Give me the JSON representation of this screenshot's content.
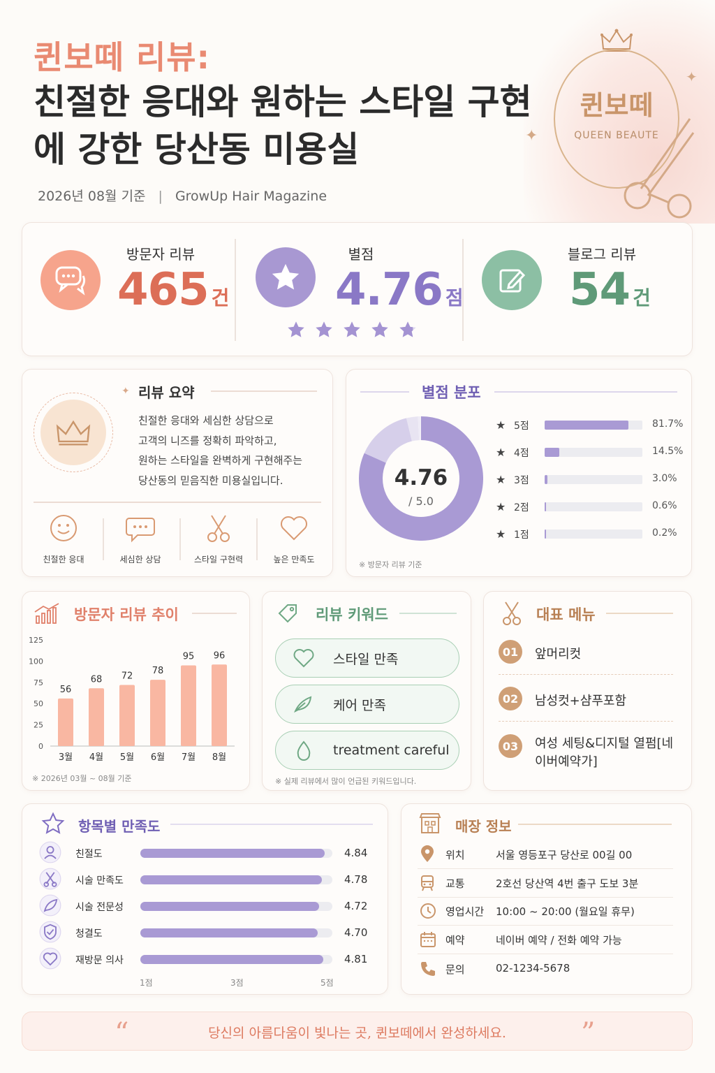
{
  "header": {
    "kicker": "퀸보떼 리뷰:",
    "title": "친절한 응대와 원하는 스타일 구현에 강한 당산동 미용실",
    "date": "2026년 08월 기준",
    "divider": "|",
    "publisher": "GrowUp Hair Magazine",
    "logo_kr": "퀸보떼",
    "logo_en": "QUEEN BEAUTE"
  },
  "stats": {
    "visitor_label": "방문자 리뷰",
    "visitor_value": "465",
    "visitor_unit": "건",
    "rating_label": "별점",
    "rating_value": "4.76",
    "rating_unit": "점",
    "rating_stars": 4.76,
    "blog_label": "블로그 리뷰",
    "blog_value": "54",
    "blog_unit": "건"
  },
  "summary": {
    "title": "리뷰 요약",
    "lines": [
      "친절한 응대와 세심한 상담으로",
      "고객의 니즈를 정확히 파악하고,",
      "원하는 스타일을 완벽하게 구현해주는",
      "당산동의 믿음직한 미용실입니다."
    ],
    "features": [
      "친절한 응대",
      "세심한 상담",
      "스타일 구현력",
      "높은 만족도"
    ]
  },
  "rating_dist": {
    "title": "별점 분포",
    "center_value": "4.76",
    "center_sub": "/ 5.0",
    "rows": [
      {
        "label": "5점",
        "pct": 81.7,
        "text": "81.7%"
      },
      {
        "label": "4점",
        "pct": 14.5,
        "text": "14.5%"
      },
      {
        "label": "3점",
        "pct": 3.0,
        "text": "3.0%"
      },
      {
        "label": "2점",
        "pct": 0.6,
        "text": "0.6%"
      },
      {
        "label": "1점",
        "pct": 0.2,
        "text": "0.2%"
      }
    ],
    "note": "※ 방문자 리뷰 기준"
  },
  "trend": {
    "title": "방문자 리뷰 추이",
    "note": "※ 2026년 03월 ~ 08월 기준"
  },
  "chart_data": {
    "type": "bar",
    "categories": [
      "3월",
      "4월",
      "5월",
      "6월",
      "7월",
      "8월"
    ],
    "values": [
      56,
      68,
      72,
      78,
      95,
      96
    ],
    "yticks": [
      0,
      25,
      50,
      75,
      100,
      125
    ],
    "ylim": [
      0,
      125
    ],
    "title": "방문자 리뷰 추이",
    "bar_color": "#f9b7a2"
  },
  "keywords": {
    "title": "리뷰 키워드",
    "items": [
      "스타일 만족",
      "케어 만족",
      "treatment careful"
    ],
    "note": "※ 실제 리뷰에서 많이 언급된 키워드입니다."
  },
  "menu": {
    "title": "대표 메뉴",
    "items": [
      {
        "num": "01",
        "name": "앞머리컷"
      },
      {
        "num": "02",
        "name": "남성컷+샴푸포함"
      },
      {
        "num": "03",
        "name": "여성 세팅&디지털 열펌[네이버예약가]"
      }
    ]
  },
  "satisfaction": {
    "title": "항목별 만족도",
    "items": [
      {
        "label": "친절도",
        "value": 4.84,
        "text": "4.84"
      },
      {
        "label": "시술 만족도",
        "value": 4.78,
        "text": "4.78"
      },
      {
        "label": "시술 전문성",
        "value": 4.72,
        "text": "4.72"
      },
      {
        "label": "청결도",
        "value": 4.7,
        "text": "4.70"
      },
      {
        "label": "재방문 의사",
        "value": 4.81,
        "text": "4.81"
      }
    ],
    "axis": [
      "1점",
      "3점",
      "5점"
    ]
  },
  "store": {
    "title": "매장 정보",
    "rows": [
      {
        "label": "위치",
        "value": "서울 영등포구 당산로 00길 00"
      },
      {
        "label": "교통",
        "value": "2호선 당산역 4번 출구 도보 3분"
      },
      {
        "label": "영업시간",
        "value": "10:00 ~ 20:00 (월요일 휴무)"
      },
      {
        "label": "예약",
        "value": "네이버 예약 / 전화 예약 가능"
      },
      {
        "label": "문의",
        "value": "02-1234-5678"
      }
    ]
  },
  "footer": {
    "quote": "당신의 아름다움이 빛나는 곳, 퀸보떼에서 완성하세요."
  },
  "colors": {
    "accent_pink": "#e98a72",
    "accent_purple": "#8a78c6",
    "accent_green": "#5f9a78",
    "gold": "#c9956a"
  }
}
